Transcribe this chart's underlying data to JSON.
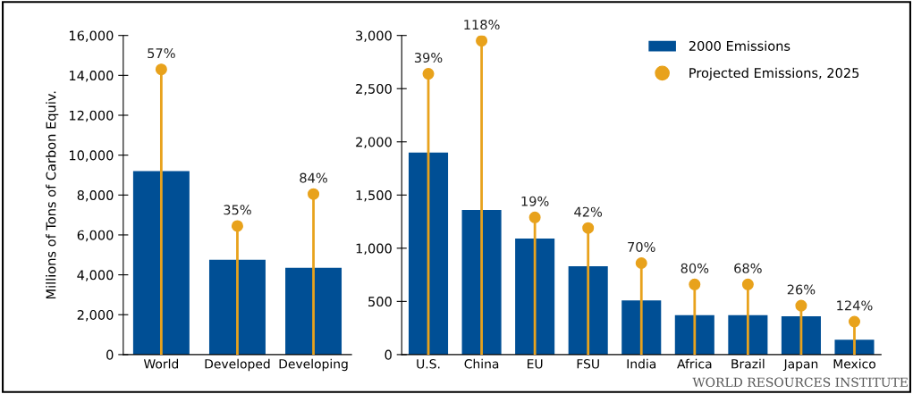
{
  "chart_data": [
    {
      "type": "bar",
      "ylabel": "Millions of Tons of Carbon Equiv.",
      "categories": [
        "World",
        "Developed",
        "Developing"
      ],
      "ylim": [
        0,
        16000
      ],
      "yticks": [
        0,
        {
          "value": 2000,
          "label": "2,000"
        },
        {
          "value": 4000,
          "label": "4,000"
        },
        {
          "value": 6000,
          "label": "6,000"
        },
        {
          "value": 8000,
          "label": "8,000"
        },
        {
          "value": 10000,
          "label": "10,000"
        },
        {
          "value": 12000,
          "label": "12,000"
        },
        {
          "value": 14000,
          "label": "14,000"
        },
        {
          "value": 16000,
          "label": "16,000"
        }
      ],
      "legend": false,
      "annotations": [
        {
          "text": "57%",
          "x": "World",
          "y": 14300
        },
        {
          "text": "35%",
          "x": "Developed",
          "y": 6450
        },
        {
          "text": "84%",
          "x": "Developing",
          "y": 8050
        }
      ],
      "series": [
        {
          "color": "#004f95",
          "values": [
            9200,
            4750,
            4350
          ]
        },
        {
          "type": "lollipop",
          "color": "#e8a21c",
          "values": [
            14300,
            6450,
            8050
          ]
        }
      ]
    },
    {
      "type": "bar",
      "categories": [
        "U.S.",
        "China",
        "EU",
        "FSU",
        "India",
        "Africa",
        "Brazil",
        "Japan",
        "Mexico"
      ],
      "ylim": [
        0,
        3000
      ],
      "yticks": [
        0,
        500,
        {
          "value": 1000,
          "label": "1,000"
        },
        {
          "value": 1500,
          "label": "1,500"
        },
        {
          "value": 2000,
          "label": "2,000"
        },
        {
          "value": 2500,
          "label": "2,500"
        },
        {
          "value": 3000,
          "label": "3,000"
        }
      ],
      "legend": "top right",
      "annotations": [
        {
          "text": "39%",
          "x": "U.S.",
          "y": 2640
        },
        {
          "text": "118%",
          "x": "China",
          "y": 2950
        },
        {
          "text": "19%",
          "x": "EU",
          "y": 1290
        },
        {
          "text": "42%",
          "x": "FSU",
          "y": 1190
        },
        {
          "text": "70%",
          "x": "India",
          "y": 860
        },
        {
          "text": "80%",
          "x": "Africa",
          "y": 660
        },
        {
          "text": "68%",
          "x": "Brazil",
          "y": 660
        },
        {
          "text": "26%",
          "x": "Japan",
          "y": 460
        },
        {
          "text": "124%",
          "x": "Mexico",
          "y": 310
        },
        "WORLD RESOURCES INSTITUTE"
      ],
      "series": [
        {
          "name": "2000 Emissions",
          "color": "#004f95",
          "values": [
            1900,
            1360,
            1090,
            830,
            510,
            370,
            370,
            360,
            140
          ]
        },
        {
          "type": "lollipop",
          "name": "Projected Emissions, 2025",
          "color": "#e8a21c",
          "values": [
            2640,
            2950,
            1290,
            1190,
            860,
            660,
            660,
            460,
            310
          ]
        }
      ]
    }
  ]
}
